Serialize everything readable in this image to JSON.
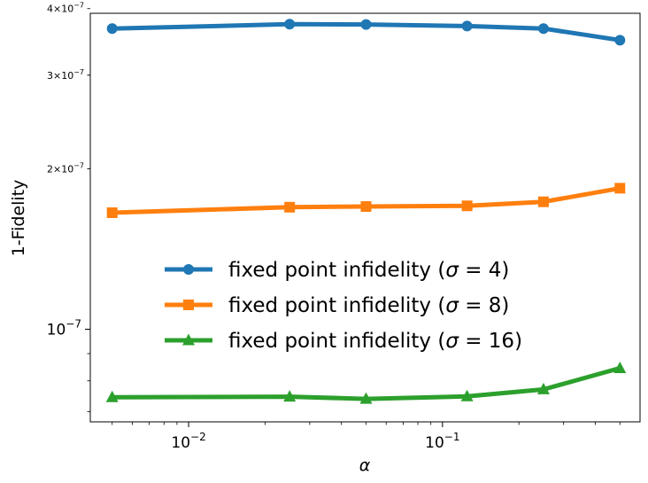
{
  "chart_data": {
    "type": "line",
    "xlabel": "α",
    "ylabel": "1-Fidelity",
    "xscale": "log",
    "yscale": "log",
    "xlim": [
      0.0041,
      0.6
    ],
    "ylim": [
      6.7e-08,
      3.92e-07
    ],
    "grid": false,
    "legend_position": "center-left",
    "x": [
      0.005,
      0.025,
      0.05,
      0.125,
      0.25,
      0.5
    ],
    "x_ticks": [
      {
        "value": 0.01,
        "base": "10",
        "exp": "−2"
      },
      {
        "value": 0.1,
        "base": "10",
        "exp": "−1"
      }
    ],
    "y_ticks": [
      {
        "value": 1e-07,
        "mant": "",
        "base": "10",
        "exp": "−7",
        "size": "big"
      },
      {
        "value": 2e-07,
        "mant": "2×",
        "base": "10",
        "exp": "−7",
        "size": "small"
      },
      {
        "value": 3e-07,
        "mant": "3×",
        "base": "10",
        "exp": "−7",
        "size": "small"
      },
      {
        "value": 4e-07,
        "mant": "4×",
        "base": "10",
        "exp": "−7",
        "size": "small"
      }
    ],
    "series": [
      {
        "name": "fixed point infidelity (σ = 4)",
        "legend_prefix": "fixed point infidelity (",
        "legend_var": "σ",
        "legend_suffix": " = 4)",
        "color": "#1f77b4",
        "marker": "circle",
        "values": [
          3.67e-07,
          3.74e-07,
          3.735e-07,
          3.71e-07,
          3.67e-07,
          3.49e-07
        ]
      },
      {
        "name": "fixed point infidelity (σ = 8)",
        "legend_prefix": "fixed point infidelity (",
        "legend_var": "σ",
        "legend_suffix": " = 8)",
        "color": "#ff7f0e",
        "marker": "square",
        "values": [
          1.655e-07,
          1.695e-07,
          1.7e-07,
          1.705e-07,
          1.735e-07,
          1.84e-07
        ]
      },
      {
        "name": "fixed point infidelity (σ = 16)",
        "legend_prefix": "fixed point infidelity (",
        "legend_var": "σ",
        "legend_suffix": " = 16)",
        "color": "#2ca02c",
        "marker": "triangle",
        "values": [
          7.45e-08,
          7.47e-08,
          7.4e-08,
          7.48e-08,
          7.71e-08,
          8.45e-08
        ]
      }
    ]
  }
}
